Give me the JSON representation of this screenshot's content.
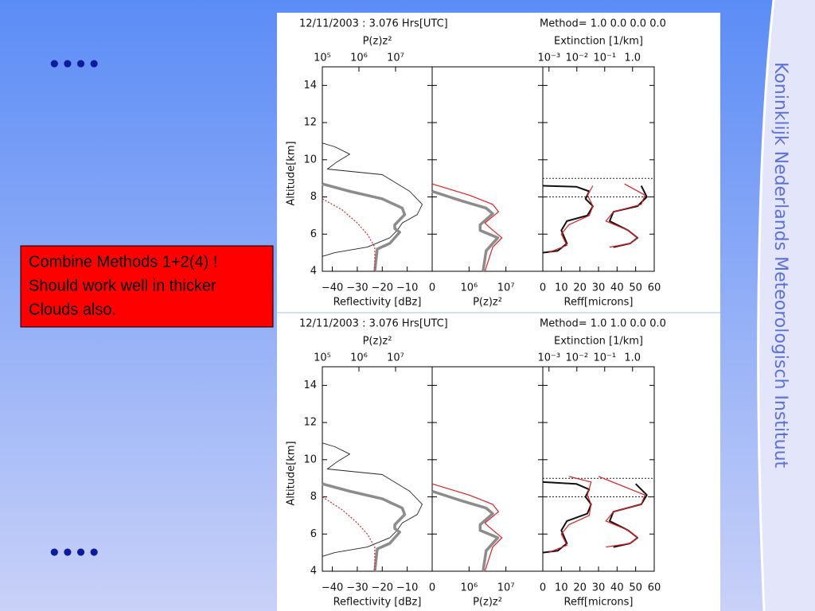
{
  "slide": {
    "side_text": "Koninklijk Nederlands Meteorologisch Instituut",
    "bullet_top": "••••",
    "bullet_bottom": "••••",
    "callout": [
      "Combine Methods 1+2(4) !",
      "Should work well in thicker",
      "Clouds also."
    ]
  },
  "chart_data": [
    {
      "type": "profile",
      "title": "12/11/2003 :  3.076 Hrs[UTC]",
      "method": "Method= 1.0 0.0 0.0 0.0",
      "y_label": "Altitude[km]",
      "ylim": [
        4,
        15
      ],
      "yticks": [
        4,
        6,
        8,
        10,
        12,
        14
      ],
      "top_axes": [
        {
          "panel": 0,
          "label": "P(z)z²",
          "log": true,
          "xlim": [
            100000,
            100000000
          ],
          "xticks": [
            {
              "value": 100000,
              "label": "10⁵"
            },
            {
              "value": 1000000,
              "label": "10⁶"
            },
            {
              "value": 10000000,
              "label": "10⁷"
            }
          ]
        },
        {
          "panel": 2,
          "label": "Extinction [1/km]",
          "log": true,
          "xlim": [
            0.0006,
            6
          ],
          "xticks": [
            {
              "value": 0.001,
              "label": "10⁻³"
            },
            {
              "value": 0.01,
              "label": "10⁻²"
            },
            {
              "value": 0.1,
              "label": "10⁻¹"
            },
            {
              "value": 1,
              "label": "1.0"
            }
          ]
        }
      ],
      "panels": [
        {
          "x_label": "Reflectivity [dBz]",
          "log": false,
          "xlim": [
            -44,
            0
          ],
          "xticks": [
            {
              "value": -40,
              "label": "−40"
            },
            {
              "value": -30,
              "label": "−30"
            },
            {
              "value": -20,
              "label": "−20"
            },
            {
              "value": -10,
              "label": "−10"
            },
            0
          ],
          "series": [
            {
              "color": "#222222",
              "width": 0.9,
              "dash": "none",
              "x": [
                -44,
                -39,
                -33,
                -38,
                -42,
                -20,
                -9,
                -4,
                -6,
                -12,
                -14,
                -17,
                -26,
                -39,
                -44
              ],
              "y": [
                10.9,
                10.7,
                10.3,
                9.9,
                9.5,
                9.2,
                8.3,
                7.6,
                7.05,
                6.6,
                6.2,
                5.8,
                5.3,
                5,
                4.8
              ]
            },
            {
              "color": "#8c8c8c",
              "width": 3.5,
              "dash": "none",
              "x": [
                -44,
                -33,
                -20,
                -12,
                -11,
                -15,
                -15,
                -13,
                -17,
                -22,
                -23
              ],
              "y": [
                8.7,
                8.3,
                7.9,
                7.4,
                7.05,
                6.5,
                6.3,
                6.1,
                5.5,
                5.2,
                4
              ]
            },
            {
              "color": "#e02020",
              "width": 1.2,
              "dash": "2,2",
              "x": [
                -44,
                -36,
                -30,
                -26,
                -23,
                -23
              ],
              "y": [
                7.9,
                7.3,
                6.6,
                6,
                5.3,
                4
              ]
            }
          ]
        },
        {
          "x_label": "P(z)z²",
          "log": true,
          "xlim": [
            100000,
            100000000
          ],
          "xticks": [
            {
              "value": 1000000,
              "label": "10⁶"
            },
            {
              "value": 10000000,
              "label": "10⁷"
            }
          ],
          "series": [
            {
              "color": "#e02020",
              "width": 1.2,
              "dash": "none",
              "x": [
                100000,
                1000000,
                4400000,
                6300000,
                2700000,
                3400000,
                7800000,
                4400000,
                2700000
              ],
              "y": [
                8.7,
                8.1,
                7.6,
                7.2,
                6.6,
                6.4,
                5.8,
                5.3,
                4
              ]
            },
            {
              "color": "#8c8c8c",
              "width": 3.5,
              "dash": "none",
              "x": [
                100000,
                600000,
                2900000,
                4400000,
                2000000,
                2000000,
                6000000,
                2900000,
                2400000
              ],
              "y": [
                8.3,
                7.8,
                7.4,
                7.1,
                6.5,
                6.2,
                5.8,
                5.1,
                4
              ]
            }
          ]
        },
        {
          "x_label": "Reff[microns]",
          "log": false,
          "xlim": [
            0,
            60
          ],
          "xticks": [
            0,
            10,
            20,
            30,
            40,
            50,
            60
          ],
          "series": [
            {
              "color": "#222222",
              "width": 1,
              "dash": "2,2",
              "x": [
                0,
                60
              ],
              "y": [
                9,
                9
              ]
            },
            {
              "color": "#222222",
              "width": 1,
              "dash": "2,2",
              "x": [
                0,
                60
              ],
              "y": [
                8,
                8
              ]
            },
            {
              "color": "#111111",
              "width": 2,
              "dash": "none",
              "x": [
                0,
                18,
                25,
                23,
                27,
                24,
                13,
                10,
                13,
                8,
                0
              ],
              "y": [
                8.6,
                8.55,
                8.3,
                7.9,
                7.5,
                7,
                6.7,
                6.2,
                5.5,
                5.1,
                5
              ]
            },
            {
              "color": "#e02020",
              "width": 1.2,
              "dash": "none",
              "x": [
                27,
                24,
                27,
                25,
                14,
                10,
                13,
                3
              ],
              "y": [
                8.6,
                8.1,
                7.5,
                7,
                6.5,
                6,
                5.4,
                5
              ]
            },
            {
              "color": "#111111",
              "width": 2,
              "dash": "none",
              "x": [
                53,
                56,
                51,
                38,
                36,
                46,
                51,
                47,
                38
              ],
              "y": [
                8.6,
                8,
                7.5,
                7.2,
                6.7,
                6.2,
                5.8,
                5.5,
                5.3
              ]
            },
            {
              "color": "#e02020",
              "width": 1.2,
              "dash": "none",
              "x": [
                44,
                55,
                53,
                38,
                34,
                46,
                51,
                47,
                36
              ],
              "y": [
                8.7,
                8.1,
                7.6,
                7.2,
                6.7,
                6.2,
                5.8,
                5.5,
                5.3
              ]
            }
          ]
        }
      ]
    },
    {
      "type": "profile",
      "title": "12/11/2003 :  3.076 Hrs[UTC]",
      "method": "Method= 1.0 1.0 0.0 0.0",
      "y_label": "Altitude[km]",
      "ylim": [
        4,
        15
      ],
      "yticks": [
        4,
        6,
        8,
        10,
        12,
        14
      ],
      "top_axes": [
        {
          "panel": 0,
          "label": "P(z)z²",
          "log": true,
          "xlim": [
            100000,
            100000000
          ],
          "xticks": [
            {
              "value": 100000,
              "label": "10⁵"
            },
            {
              "value": 1000000,
              "label": "10⁶"
            },
            {
              "value": 10000000,
              "label": "10⁷"
            }
          ]
        },
        {
          "panel": 2,
          "label": "Extinction [1/km]",
          "log": true,
          "xlim": [
            0.0006,
            6
          ],
          "xticks": [
            {
              "value": 0.001,
              "label": "10⁻³"
            },
            {
              "value": 0.01,
              "label": "10⁻²"
            },
            {
              "value": 0.1,
              "label": "10⁻¹"
            },
            {
              "value": 1,
              "label": "1.0"
            }
          ]
        }
      ],
      "panels": [
        {
          "x_label": "Reflectivity [dBz]",
          "log": false,
          "xlim": [
            -44,
            0
          ],
          "xticks": [
            {
              "value": -40,
              "label": "−40"
            },
            {
              "value": -30,
              "label": "−30"
            },
            {
              "value": -20,
              "label": "−20"
            },
            {
              "value": -10,
              "label": "−10"
            },
            0
          ],
          "series": [
            {
              "color": "#222222",
              "width": 0.9,
              "dash": "none",
              "x": [
                -44,
                -39,
                -33,
                -38,
                -42,
                -20,
                -9,
                -4,
                -6,
                -12,
                -14,
                -17,
                -26,
                -39,
                -44
              ],
              "y": [
                10.9,
                10.7,
                10.3,
                9.9,
                9.5,
                9.2,
                8.3,
                7.6,
                7.05,
                6.6,
                6.2,
                5.8,
                5.3,
                5,
                4.8
              ]
            },
            {
              "color": "#8c8c8c",
              "width": 3.5,
              "dash": "none",
              "x": [
                -44,
                -33,
                -20,
                -12,
                -11,
                -15,
                -15,
                -13,
                -17,
                -22,
                -23
              ],
              "y": [
                8.7,
                8.3,
                7.9,
                7.4,
                7.05,
                6.5,
                6.3,
                6.1,
                5.5,
                5.2,
                4
              ]
            },
            {
              "color": "#e02020",
              "width": 1.2,
              "dash": "2,2",
              "x": [
                -44,
                -36,
                -30,
                -26,
                -23,
                -23
              ],
              "y": [
                8,
                7.3,
                6.6,
                6,
                5.3,
                4
              ]
            }
          ]
        },
        {
          "x_label": "P(z)z²",
          "log": true,
          "xlim": [
            100000,
            100000000
          ],
          "xticks": [
            {
              "value": 1000000,
              "label": "10⁶"
            },
            {
              "value": 10000000,
              "label": "10⁷"
            }
          ],
          "series": [
            {
              "color": "#e02020",
              "width": 1.2,
              "dash": "none",
              "x": [
                100000,
                1000000,
                4400000,
                6300000,
                2700000,
                3400000,
                7800000,
                4400000,
                2700000
              ],
              "y": [
                8.7,
                8.1,
                7.6,
                7.2,
                6.6,
                6.4,
                5.8,
                5.3,
                4
              ]
            },
            {
              "color": "#8c8c8c",
              "width": 3.5,
              "dash": "none",
              "x": [
                100000,
                600000,
                2900000,
                4400000,
                2000000,
                2000000,
                6000000,
                2900000,
                2400000
              ],
              "y": [
                8.3,
                7.8,
                7.4,
                7.1,
                6.5,
                6.2,
                5.8,
                5.1,
                4
              ]
            }
          ]
        },
        {
          "x_label": "Reff[microns]",
          "log": false,
          "xlim": [
            0,
            60
          ],
          "xticks": [
            0,
            10,
            20,
            30,
            40,
            50,
            60
          ],
          "series": [
            {
              "color": "#222222",
              "width": 1,
              "dash": "2,2",
              "x": [
                0,
                60
              ],
              "y": [
                9,
                9
              ]
            },
            {
              "color": "#222222",
              "width": 1,
              "dash": "2,2",
              "x": [
                0,
                60
              ],
              "y": [
                8,
                8
              ]
            },
            {
              "color": "#111111",
              "width": 2,
              "dash": "none",
              "x": [
                0,
                18,
                25,
                23,
                26,
                24,
                13,
                10,
                13,
                8,
                0
              ],
              "y": [
                8.8,
                8.7,
                8.4,
                8,
                7.6,
                7.1,
                6.7,
                6.2,
                5.5,
                5.1,
                5
              ]
            },
            {
              "color": "#e02020",
              "width": 1.2,
              "dash": "none",
              "x": [
                14,
                26,
                24,
                26,
                25,
                14,
                10,
                13,
                3
              ],
              "y": [
                9.1,
                8.8,
                8.1,
                7.6,
                7,
                6.5,
                6,
                5.4,
                5
              ]
            },
            {
              "color": "#111111",
              "width": 2,
              "dash": "none",
              "x": [
                50,
                56,
                53,
                38,
                36,
                46,
                51,
                47,
                38
              ],
              "y": [
                8.7,
                8.1,
                7.6,
                7.2,
                6.7,
                6.2,
                5.8,
                5.5,
                5.3
              ]
            },
            {
              "color": "#e02020",
              "width": 1.2,
              "dash": "none",
              "x": [
                30,
                55,
                53,
                38,
                34,
                46,
                51,
                47,
                34
              ],
              "y": [
                9.1,
                8.1,
                7.6,
                7.2,
                6.7,
                6.2,
                5.8,
                5.5,
                5.3
              ]
            }
          ]
        }
      ]
    }
  ]
}
